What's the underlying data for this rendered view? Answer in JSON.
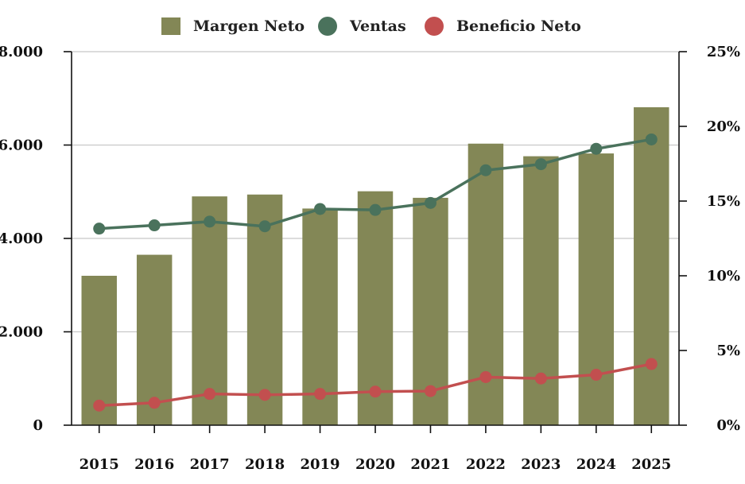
{
  "chart_data": {
    "type": "bar",
    "categories": [
      "2015",
      "2016",
      "2017",
      "2018",
      "2019",
      "2020",
      "2021",
      "2022",
      "2023",
      "2024",
      "2025"
    ],
    "series": [
      {
        "name": "Margen Neto",
        "kind": "bar",
        "axis": "left",
        "values": [
          3200,
          3650,
          4900,
          4940,
          4640,
          5010,
          4870,
          6030,
          5760,
          5820,
          6810
        ]
      },
      {
        "name": "Ventas",
        "kind": "line",
        "axis": "left",
        "values": [
          4210,
          4280,
          4360,
          4260,
          4630,
          4610,
          4760,
          5460,
          5590,
          5920,
          6120
        ]
      },
      {
        "name": "Beneficio Neto",
        "kind": "line",
        "axis": "left",
        "values": [
          420,
          480,
          670,
          650,
          670,
          720,
          730,
          1030,
          1000,
          1080,
          1310
        ]
      }
    ],
    "y_left": {
      "min": 0,
      "max": 8000,
      "ticks": [
        0,
        2000,
        4000,
        6000,
        8000
      ],
      "tick_labels": [
        "0",
        "2.000",
        "4.000",
        "6.000",
        "8.000"
      ]
    },
    "y_right": {
      "min": 0,
      "max": 25,
      "ticks": [
        0,
        5,
        10,
        15,
        20,
        25
      ],
      "tick_labels": [
        "0%",
        "5%",
        "10%",
        "15%",
        "20%",
        "25%"
      ]
    },
    "grid": true,
    "legend_position": "top-center",
    "colors": {
      "bar": "#838756",
      "ventas": "#4a725c",
      "beneficio": "#c24f4f",
      "grid": "#c8c8c8",
      "axis": "#111111"
    }
  },
  "legend": [
    {
      "label": "Margen Neto",
      "color": "#838756",
      "shape": "square"
    },
    {
      "label": "Ventas",
      "color": "#4a725c",
      "shape": "circle"
    },
    {
      "label": "Beneficio Neto",
      "color": "#c24f4f",
      "shape": "circle"
    }
  ]
}
